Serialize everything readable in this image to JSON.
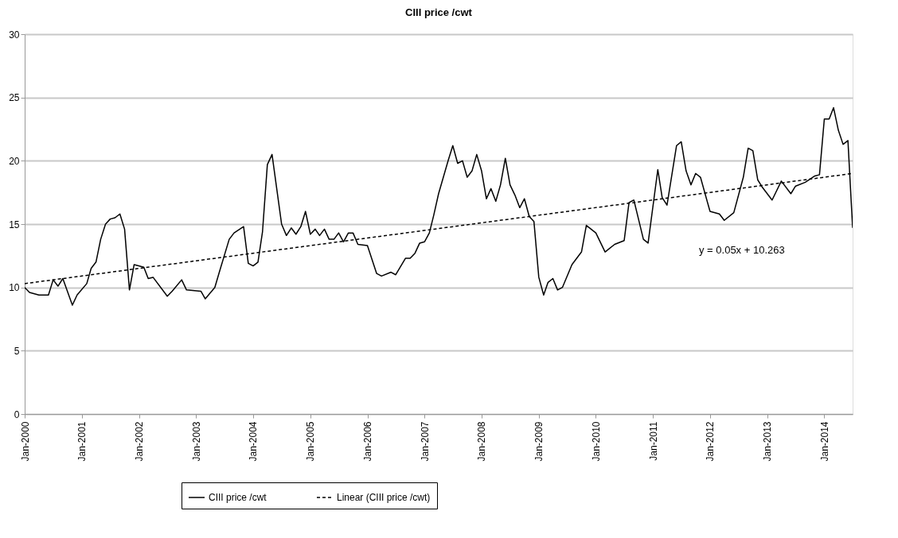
{
  "chart_data": {
    "type": "line",
    "title": "CIII price /cwt",
    "series": [
      {
        "name": "CIII price /cwt",
        "color": "#000000",
        "line_style": "solid",
        "x": [
          "2000-01",
          "2000-02",
          "2000-04",
          "2000-06",
          "2000-07",
          "2000-08",
          "2000-09",
          "2000-11",
          "2000-12",
          "2001-02",
          "2001-03",
          "2001-04",
          "2001-05",
          "2001-06",
          "2001-07",
          "2001-08",
          "2001-09",
          "2001-10",
          "2001-11",
          "2001-12",
          "2002-02",
          "2002-03",
          "2002-04",
          "2002-07",
          "2002-08",
          "2002-10",
          "2002-11",
          "2003-02",
          "2003-03",
          "2003-05",
          "2003-06",
          "2003-08",
          "2003-09",
          "2003-11",
          "2003-12",
          "2004-01",
          "2004-02",
          "2004-03",
          "2004-04",
          "2004-05",
          "2004-07",
          "2004-08",
          "2004-09",
          "2004-10",
          "2004-11",
          "2004-12",
          "2005-01",
          "2005-02",
          "2005-03",
          "2005-04",
          "2005-05",
          "2005-06",
          "2005-07",
          "2005-08",
          "2005-09",
          "2005-10",
          "2005-11",
          "2006-01",
          "2006-03",
          "2006-04",
          "2006-06",
          "2006-07",
          "2006-09",
          "2006-10",
          "2006-11",
          "2006-12",
          "2007-01",
          "2007-02",
          "2007-03",
          "2007-04",
          "2007-06",
          "2007-07",
          "2007-08",
          "2007-09",
          "2007-10",
          "2007-11",
          "2007-12",
          "2008-01",
          "2008-02",
          "2008-03",
          "2008-04",
          "2008-05",
          "2008-06",
          "2008-07",
          "2008-08",
          "2008-09",
          "2008-10",
          "2008-11",
          "2008-12",
          "2009-01",
          "2009-02",
          "2009-03",
          "2009-04",
          "2009-05",
          "2009-06",
          "2009-08",
          "2009-10",
          "2009-11",
          "2010-01",
          "2010-03",
          "2010-05",
          "2010-07",
          "2010-08",
          "2010-09",
          "2010-11",
          "2010-12",
          "2011-02",
          "2011-03",
          "2011-04",
          "2011-06",
          "2011-07",
          "2011-08",
          "2011-09",
          "2011-10",
          "2011-11",
          "2012-01",
          "2012-03",
          "2012-04",
          "2012-06",
          "2012-08",
          "2012-09",
          "2012-10",
          "2012-11",
          "2012-12",
          "2013-02",
          "2013-04",
          "2013-06",
          "2013-07",
          "2013-09",
          "2013-11",
          "2013-12",
          "2014-01",
          "2014-02",
          "2014-03",
          "2014-04",
          "2014-05",
          "2014-06",
          "2014-07"
        ],
        "values": [
          10.0,
          9.6,
          9.4,
          9.4,
          10.6,
          10.1,
          10.7,
          8.6,
          9.4,
          10.3,
          11.5,
          12.0,
          13.8,
          15.0,
          15.4,
          15.5,
          15.8,
          14.6,
          9.8,
          11.8,
          11.6,
          10.7,
          10.8,
          9.3,
          9.7,
          10.6,
          9.8,
          9.7,
          9.1,
          10.0,
          11.3,
          13.8,
          14.3,
          14.8,
          11.9,
          11.7,
          12.0,
          14.4,
          19.7,
          20.5,
          15.0,
          14.1,
          14.7,
          14.2,
          14.8,
          16.0,
          14.2,
          14.6,
          14.1,
          14.6,
          13.8,
          13.8,
          14.3,
          13.6,
          14.3,
          14.3,
          13.4,
          13.3,
          11.1,
          10.9,
          11.2,
          11.0,
          12.3,
          12.3,
          12.7,
          13.5,
          13.6,
          14.3,
          15.7,
          17.4,
          20.0,
          21.2,
          19.8,
          20.0,
          18.7,
          19.2,
          20.5,
          19.2,
          17.0,
          17.8,
          16.8,
          18.1,
          20.2,
          18.1,
          17.3,
          16.3,
          17.0,
          15.6,
          15.2,
          10.8,
          9.4,
          10.4,
          10.7,
          9.8,
          10.0,
          11.8,
          12.8,
          14.9,
          14.3,
          12.8,
          13.4,
          13.7,
          16.7,
          16.9,
          13.8,
          13.5,
          19.3,
          17.1,
          16.5,
          21.2,
          21.5,
          19.2,
          18.1,
          19.0,
          18.7,
          16.0,
          15.8,
          15.3,
          15.9,
          18.7,
          21.0,
          20.8,
          18.5,
          17.9,
          16.9,
          18.4,
          17.4,
          18.0,
          18.3,
          18.8,
          18.9,
          23.3,
          23.3,
          24.2,
          22.4,
          21.3,
          21.6,
          14.7
        ]
      },
      {
        "name": "Linear (CIII price /cwt)",
        "color": "#000000",
        "line_style": "dashed",
        "x": [
          "2000-01",
          "2014-07"
        ],
        "values": [
          10.3,
          19.0
        ]
      }
    ],
    "xlim": [
      "2000-01",
      "2014-07"
    ],
    "xticks": [
      {
        "value": "2000-01",
        "label": "Jan-2000"
      },
      {
        "value": "2001-01",
        "label": "Jan-2001"
      },
      {
        "value": "2002-01",
        "label": "Jan-2002"
      },
      {
        "value": "2003-01",
        "label": "Jan-2003"
      },
      {
        "value": "2004-01",
        "label": "Jan-2004"
      },
      {
        "value": "2005-01",
        "label": "Jan-2005"
      },
      {
        "value": "2006-01",
        "label": "Jan-2006"
      },
      {
        "value": "2007-01",
        "label": "Jan-2007"
      },
      {
        "value": "2008-01",
        "label": "Jan-2008"
      },
      {
        "value": "2009-01",
        "label": "Jan-2009"
      },
      {
        "value": "2010-01",
        "label": "Jan-2010"
      },
      {
        "value": "2011-01",
        "label": "Jan-2011"
      },
      {
        "value": "2012-01",
        "label": "Jan-2012"
      },
      {
        "value": "2013-01",
        "label": "Jan-2013"
      },
      {
        "value": "2014-01",
        "label": "Jan-2014"
      }
    ],
    "ylim": [
      0,
      30
    ],
    "yticks": [
      0,
      5,
      10,
      15,
      20,
      25,
      30
    ],
    "grid": "y",
    "legend": "bottom",
    "marker": "none",
    "annotations": [
      "y = 0.05x + 10.263"
    ]
  }
}
